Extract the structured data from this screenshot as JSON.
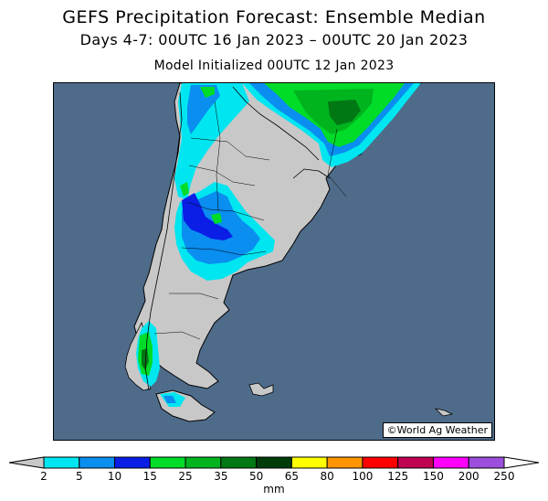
{
  "title": "GEFS Precipitation Forecast: Ensemble Median",
  "subtitle": "Days 4-7: 00UTC 16 Jan 2023 – 00UTC 20 Jan 2023",
  "init_line": "Model Initialized 00UTC 12 Jan 2023",
  "credit": "©World Ag Weather",
  "colors": {
    "ocean": "#4e6b8a",
    "land": "#c8c8c8",
    "border": "#000000"
  },
  "legend": {
    "unit": "mm",
    "ticks": [
      "2",
      "5",
      "10",
      "15",
      "25",
      "35",
      "50",
      "65",
      "80",
      "100",
      "125",
      "150",
      "200",
      "250"
    ],
    "colors": [
      "#00e6f0",
      "#0a8ef0",
      "#0a1ee6",
      "#00dc28",
      "#00b41e",
      "#007814",
      "#003c0a",
      "#ffff00",
      "#ff9600",
      "#ff0000",
      "#c00050",
      "#ff00ff",
      "#9b4fdc"
    ]
  }
}
